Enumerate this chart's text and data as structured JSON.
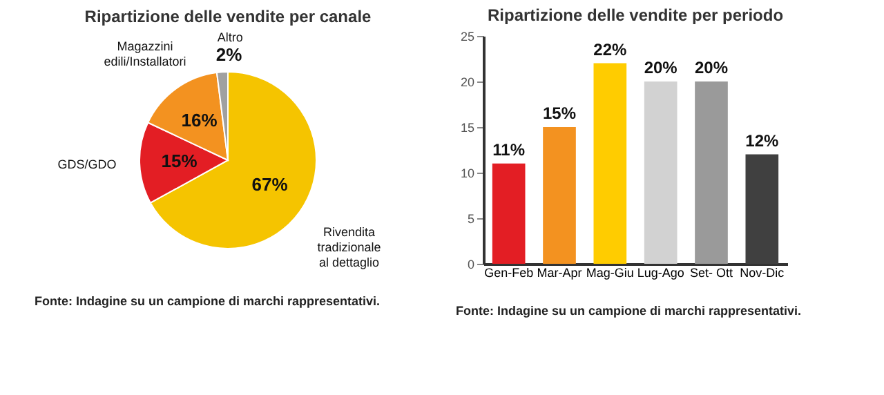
{
  "chart_data": [
    {
      "type": "pie",
      "title": "Ripartizione delle vendite per canale",
      "categories": [
        "Rivendita tradizionale al dettaglio",
        "GDS/GDO",
        "Magazzini edili/Installatori",
        "Altro"
      ],
      "values": [
        67,
        15,
        16,
        2
      ],
      "value_labels": [
        "67%",
        "15%",
        "16%",
        "2%"
      ],
      "colors": [
        "#f5c400",
        "#e31e24",
        "#f39220",
        "#a0a0a0"
      ],
      "legend": false,
      "annotations": [
        "Fonte: Indagine su un campione di marchi rappresentativi."
      ]
    },
    {
      "type": "bar",
      "title": "Ripartizione delle vendite per periodo",
      "categories": [
        "Gen-Feb",
        "Mar-Apr",
        "Mag-Giu",
        "Lug-Ago",
        "Set- Ott",
        "Nov-Dic"
      ],
      "values": [
        11,
        15,
        22,
        20,
        20,
        12
      ],
      "value_labels": [
        "11%",
        "15%",
        "22%",
        "20%",
        "20%",
        "12%"
      ],
      "colors": [
        "#e31e24",
        "#f39220",
        "#ffcc00",
        "#d2d2d2",
        "#9a9a9a",
        "#404040"
      ],
      "ylim": [
        0,
        25
      ],
      "yticks": [
        0,
        5,
        10,
        15,
        20,
        25
      ],
      "grid": false,
      "legend": false,
      "annotations": [
        "Fonte: Indagine su un campione di marchi rappresentativi."
      ]
    }
  ]
}
